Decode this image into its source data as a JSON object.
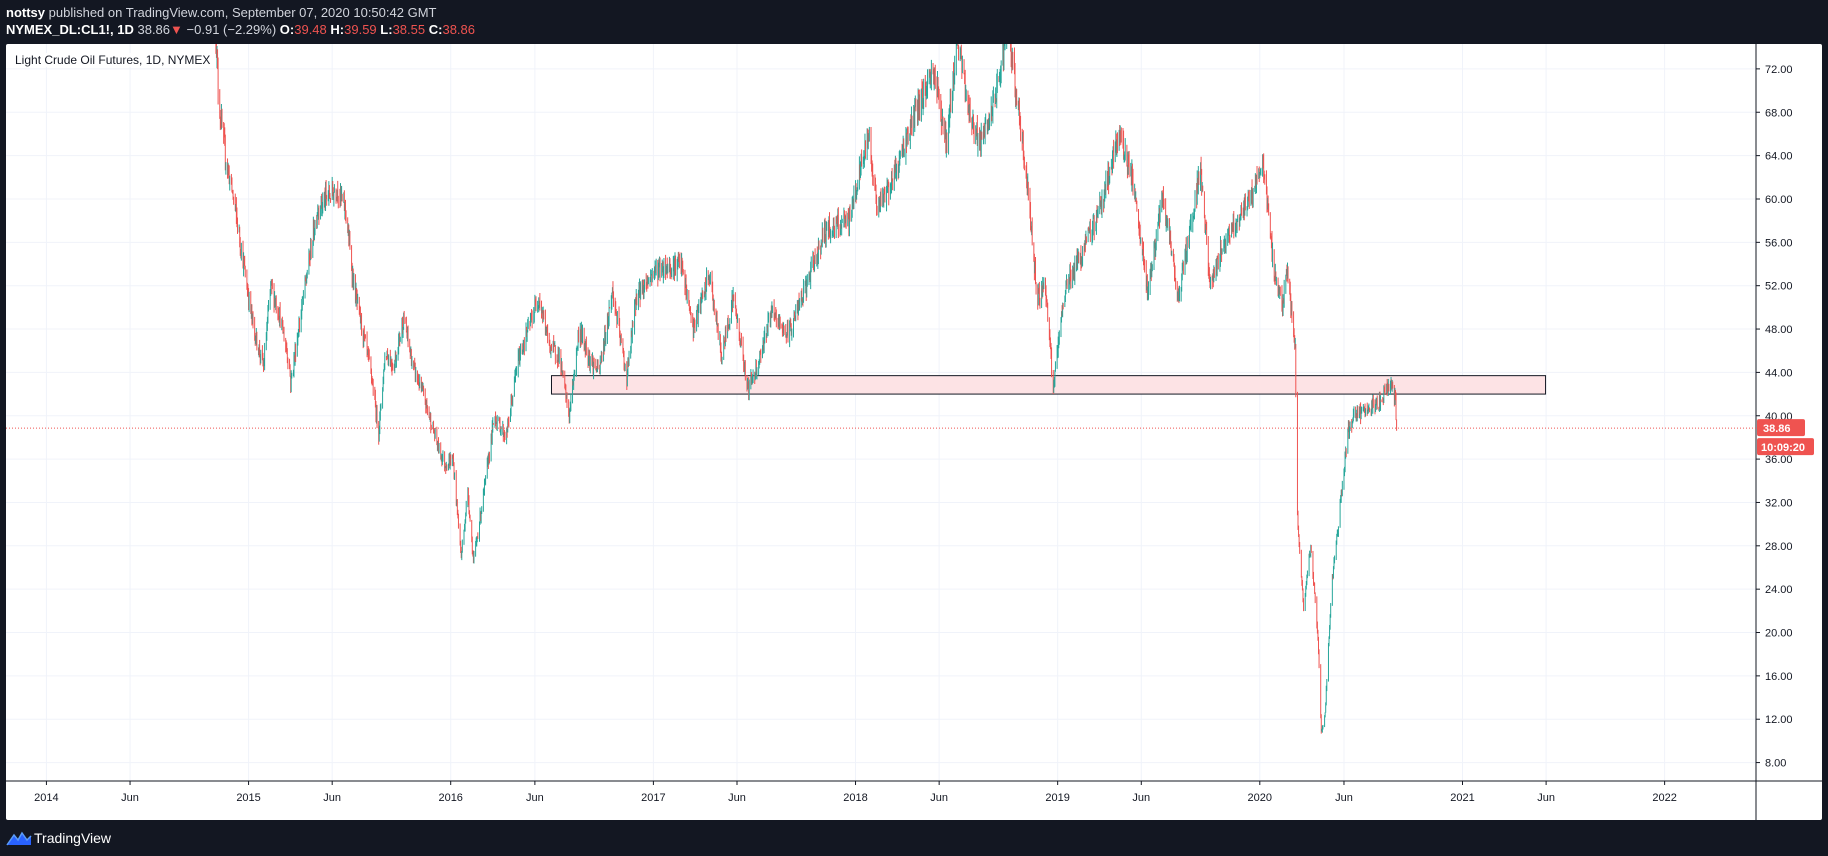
{
  "header": {
    "author": "nottsy",
    "publish_text": "published on TradingView.com, September 07, 2020 10:50:42 GMT",
    "symbol": "NYMEX_DL:CL1!, 1D",
    "last": "38.86",
    "arrow": "▼",
    "change": "−0.91 (−2.29%)",
    "o_label": "O:",
    "o_value": "39.48",
    "h_label": "H:",
    "h_value": "39.59",
    "l_label": "L:",
    "l_value": "38.55",
    "c_label": "C:",
    "c_value": "38.86"
  },
  "footer": {
    "logo_icon": "tradingview-logo-icon",
    "logo_text": "TradingView"
  },
  "colors": {
    "up": "#26a69a",
    "down": "#ef5350",
    "grid": "#f0f3fa",
    "axis_text": "#131722",
    "zone_fill": "#fde3e5",
    "zone_border": "#131722",
    "price_label_bg": "#ef5350"
  },
  "chart_data": {
    "type": "candlestick",
    "title": "Light Crude Oil Futures, 1D, NYMEX",
    "x_ticks": [
      {
        "date": "2014-01-01",
        "label": "2014"
      },
      {
        "date": "2014-06-01",
        "label": "Jun"
      },
      {
        "date": "2015-01-01",
        "label": "2015"
      },
      {
        "date": "2015-06-01",
        "label": "Jun"
      },
      {
        "date": "2016-01-01",
        "label": "2016"
      },
      {
        "date": "2016-06-01",
        "label": "Jun"
      },
      {
        "date": "2017-01-01",
        "label": "2017"
      },
      {
        "date": "2017-06-01",
        "label": "Jun"
      },
      {
        "date": "2018-01-01",
        "label": "2018"
      },
      {
        "date": "2018-06-01",
        "label": "Jun"
      },
      {
        "date": "2019-01-01",
        "label": "2019"
      },
      {
        "date": "2019-06-01",
        "label": "Jun"
      },
      {
        "date": "2020-01-01",
        "label": "2020"
      },
      {
        "date": "2020-06-01",
        "label": "Jun"
      },
      {
        "date": "2021-01-01",
        "label": "2021"
      },
      {
        "date": "2021-06-01",
        "label": "Jun"
      },
      {
        "date": "2022-01-01",
        "label": "2022"
      }
    ],
    "xlim": [
      "2013-10-20",
      "2022-06-15"
    ],
    "y_ticks": [
      "8.00",
      "12.00",
      "16.00",
      "20.00",
      "24.00",
      "28.00",
      "32.00",
      "36.00",
      "40.00",
      "44.00",
      "48.00",
      "52.00",
      "56.00",
      "60.00",
      "64.00",
      "68.00",
      "72.00"
    ],
    "ylim": [
      6.3,
      74.3
    ],
    "price_series": [
      [
        "2014-11-01",
        78
      ],
      [
        "2014-11-08",
        69
      ],
      [
        "2014-11-20",
        64
      ],
      [
        "2014-12-05",
        60
      ],
      [
        "2014-12-20",
        55
      ],
      [
        "2015-01-10",
        48
      ],
      [
        "2015-01-28",
        44.5
      ],
      [
        "2015-02-10",
        52
      ],
      [
        "2015-02-25",
        49.5
      ],
      [
        "2015-03-15",
        45
      ],
      [
        "2015-03-18",
        43
      ],
      [
        "2015-04-10",
        51
      ],
      [
        "2015-05-05",
        59
      ],
      [
        "2015-05-20",
        60
      ],
      [
        "2015-06-10",
        61
      ],
      [
        "2015-06-25",
        59
      ],
      [
        "2015-07-10",
        52
      ],
      [
        "2015-07-25",
        48
      ],
      [
        "2015-08-10",
        44
      ],
      [
        "2015-08-24",
        38.5
      ],
      [
        "2015-09-05",
        46
      ],
      [
        "2015-09-20",
        44.5
      ],
      [
        "2015-10-08",
        49
      ],
      [
        "2015-10-25",
        44.5
      ],
      [
        "2015-11-12",
        42
      ],
      [
        "2015-12-10",
        37
      ],
      [
        "2015-12-22",
        35.5
      ],
      [
        "2016-01-05",
        36
      ],
      [
        "2016-01-20",
        27
      ],
      [
        "2016-02-01",
        33
      ],
      [
        "2016-02-11",
        26.5
      ],
      [
        "2016-03-01",
        33
      ],
      [
        "2016-03-20",
        40
      ],
      [
        "2016-04-10",
        38
      ],
      [
        "2016-05-01",
        45
      ],
      [
        "2016-06-08",
        51
      ],
      [
        "2016-06-27",
        46.5
      ],
      [
        "2016-07-15",
        45.5
      ],
      [
        "2016-08-02",
        40
      ],
      [
        "2016-08-20",
        48
      ],
      [
        "2016-09-10",
        45
      ],
      [
        "2016-09-25",
        44
      ],
      [
        "2016-10-19",
        51.5
      ],
      [
        "2016-11-14",
        43.5
      ],
      [
        "2016-12-01",
        51
      ],
      [
        "2017-01-05",
        53.5
      ],
      [
        "2017-02-20",
        54
      ],
      [
        "2017-03-14",
        48
      ],
      [
        "2017-04-12",
        53
      ],
      [
        "2017-05-04",
        45.5
      ],
      [
        "2017-05-25",
        51
      ],
      [
        "2017-06-21",
        42.5
      ],
      [
        "2017-07-10",
        45
      ],
      [
        "2017-08-01",
        49.5
      ],
      [
        "2017-09-01",
        47.5
      ],
      [
        "2017-10-01",
        51.5
      ],
      [
        "2017-11-06",
        57
      ],
      [
        "2017-12-20",
        58
      ],
      [
        "2018-01-25",
        66
      ],
      [
        "2018-02-09",
        59
      ],
      [
        "2018-03-10",
        62
      ],
      [
        "2018-04-20",
        68
      ],
      [
        "2018-05-22",
        72
      ],
      [
        "2018-06-15",
        65
      ],
      [
        "2018-07-03",
        75
      ],
      [
        "2018-07-25",
        68
      ],
      [
        "2018-08-15",
        65
      ],
      [
        "2018-09-10",
        69
      ],
      [
        "2018-10-03",
        76
      ],
      [
        "2018-10-20",
        69
      ],
      [
        "2018-11-10",
        60
      ],
      [
        "2018-11-25",
        51
      ],
      [
        "2018-12-10",
        52
      ],
      [
        "2018-12-24",
        42.5
      ],
      [
        "2019-01-15",
        52
      ],
      [
        "2019-02-15",
        55
      ],
      [
        "2019-03-20",
        59.5
      ],
      [
        "2019-04-23",
        66
      ],
      [
        "2019-05-15",
        62
      ],
      [
        "2019-06-12",
        51.5
      ],
      [
        "2019-07-10",
        60
      ],
      [
        "2019-08-07",
        51
      ],
      [
        "2019-09-16",
        63
      ],
      [
        "2019-10-03",
        52
      ],
      [
        "2019-11-01",
        56.5
      ],
      [
        "2019-12-15",
        60
      ],
      [
        "2020-01-07",
        63.5
      ],
      [
        "2020-01-25",
        54
      ],
      [
        "2020-02-10",
        50
      ],
      [
        "2020-02-20",
        53.5
      ],
      [
        "2020-03-05",
        46
      ],
      [
        "2020-03-09",
        31
      ],
      [
        "2020-03-20",
        22
      ],
      [
        "2020-04-02",
        28
      ],
      [
        "2020-04-15",
        19.5
      ],
      [
        "2020-04-21",
        11
      ],
      [
        "2020-04-28",
        12.5
      ],
      [
        "2020-05-10",
        24.5
      ],
      [
        "2020-05-28",
        33
      ],
      [
        "2020-06-08",
        38.5
      ],
      [
        "2020-06-20",
        40
      ],
      [
        "2020-07-10",
        40.5
      ],
      [
        "2020-08-01",
        41
      ],
      [
        "2020-08-26",
        43.2
      ],
      [
        "2020-09-02",
        41.5
      ],
      [
        "2020-09-04",
        38.86
      ]
    ],
    "support_zone": {
      "from": "2016-07-01",
      "to": "2021-05-31",
      "low": 42,
      "high": 43.7
    },
    "last_price_label": "38.86",
    "countdown_label": "10:09:20"
  }
}
